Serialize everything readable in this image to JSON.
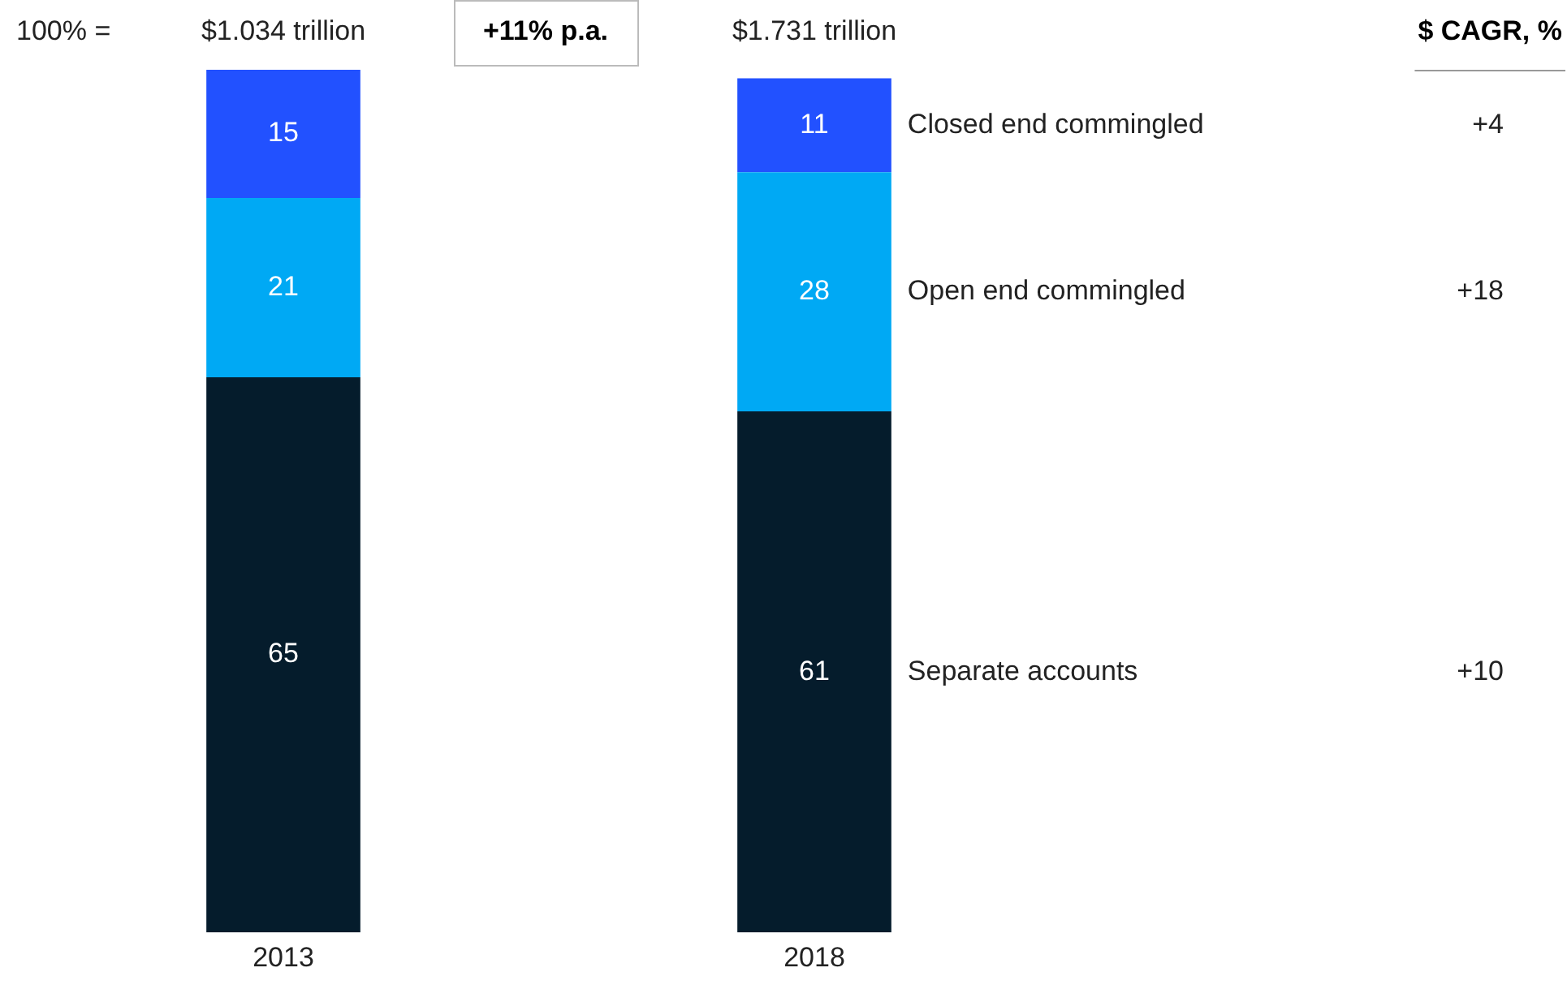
{
  "chart_data": {
    "type": "bar",
    "stacked": true,
    "categories": [
      "2013",
      "2018"
    ],
    "series": [
      {
        "name": "Separate accounts",
        "color": "#051c2c",
        "values": [
          65,
          61
        ]
      },
      {
        "name": "Open end commingled",
        "color": "#00a9f4",
        "values": [
          21,
          28
        ]
      },
      {
        "name": "Closed end commingled",
        "color": "#2251ff",
        "values": [
          15,
          11
        ]
      }
    ],
    "ylim": [
      0,
      101
    ],
    "data_labels": true,
    "legend": false,
    "grid": false,
    "tick_labels": "x",
    "annotations": [
      "100% =",
      "$1.034 trillion",
      "+11% p.a.",
      "$1.731 trillion",
      "$ CAGR, %",
      "+10",
      "+18",
      "+4"
    ]
  }
}
